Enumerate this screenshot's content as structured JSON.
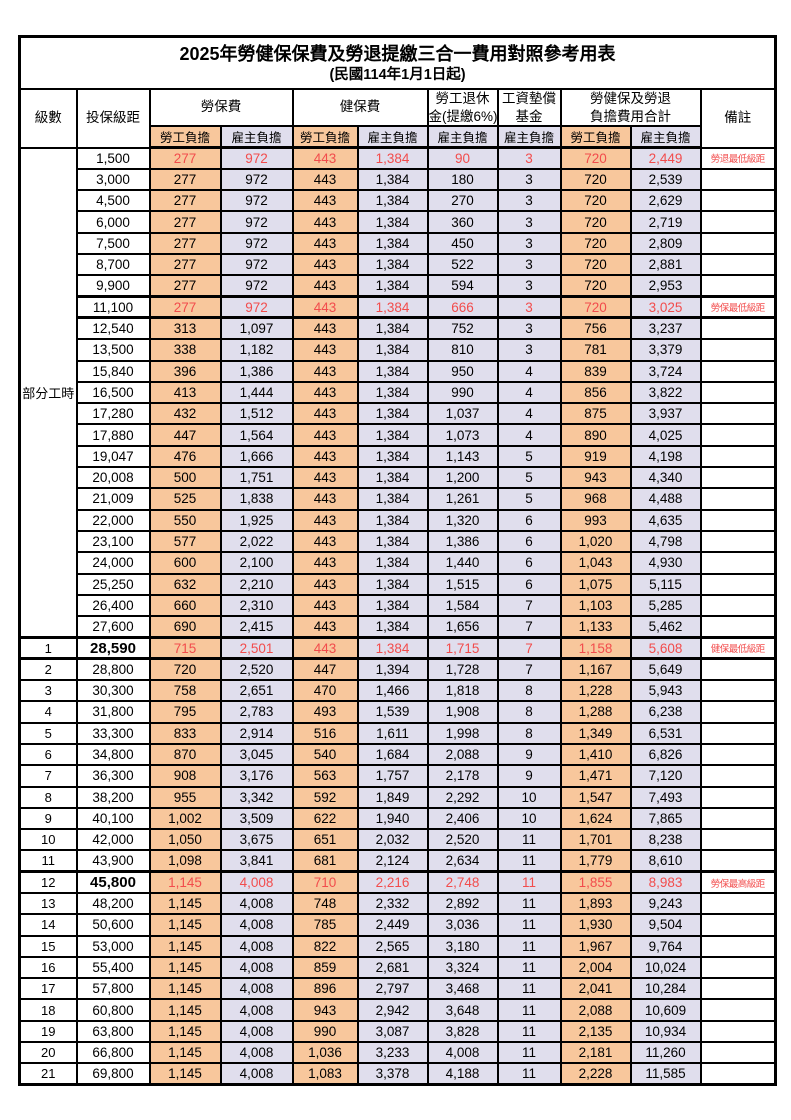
{
  "title": "2025年勞健保保費及勞退提繳三合一費用對照參考用表",
  "subtitle": "(民國114年1月1日起)",
  "header": {
    "level": "級數",
    "salary": "投保級距",
    "labor_group": "勞保費",
    "health_group": "健保費",
    "pension_line1": "勞工退休",
    "pension_line2": "金(提繳6%)",
    "fund_line1": "工資墊償",
    "fund_line2": "基金",
    "total_line1": "勞健保及勞退",
    "total_line2": "負擔費用合計",
    "remark": "備註",
    "employee": "勞工負擔",
    "employer": "雇主負擔"
  },
  "part_time_label": "部分工時",
  "colors": {
    "employee_bg": "#F8C79C",
    "employer_bg": "#E0DEED",
    "highlight_text": "#F24C4C",
    "border": "#000000"
  },
  "rows": [
    {
      "level": "",
      "salary": "1,500",
      "labor_emp": "277",
      "labor_er": "972",
      "health_emp": "443",
      "health_er": "1,384",
      "pension_er": "90",
      "fund_er": "3",
      "total_emp": "720",
      "total_er": "2,449",
      "remark": "勞退最低級距",
      "highlight": true,
      "key": false,
      "outline": ""
    },
    {
      "level": "",
      "salary": "3,000",
      "labor_emp": "277",
      "labor_er": "972",
      "health_emp": "443",
      "health_er": "1,384",
      "pension_er": "180",
      "fund_er": "3",
      "total_emp": "720",
      "total_er": "2,539",
      "remark": "",
      "highlight": false,
      "key": false,
      "outline": ""
    },
    {
      "level": "",
      "salary": "4,500",
      "labor_emp": "277",
      "labor_er": "972",
      "health_emp": "443",
      "health_er": "1,384",
      "pension_er": "270",
      "fund_er": "3",
      "total_emp": "720",
      "total_er": "2,629",
      "remark": "",
      "highlight": false,
      "key": false,
      "outline": ""
    },
    {
      "level": "",
      "salary": "6,000",
      "labor_emp": "277",
      "labor_er": "972",
      "health_emp": "443",
      "health_er": "1,384",
      "pension_er": "360",
      "fund_er": "3",
      "total_emp": "720",
      "total_er": "2,719",
      "remark": "",
      "highlight": false,
      "key": false,
      "outline": ""
    },
    {
      "level": "",
      "salary": "7,500",
      "labor_emp": "277",
      "labor_er": "972",
      "health_emp": "443",
      "health_er": "1,384",
      "pension_er": "450",
      "fund_er": "3",
      "total_emp": "720",
      "total_er": "2,809",
      "remark": "",
      "highlight": false,
      "key": false,
      "outline": ""
    },
    {
      "level": "",
      "salary": "8,700",
      "labor_emp": "277",
      "labor_er": "972",
      "health_emp": "443",
      "health_er": "1,384",
      "pension_er": "522",
      "fund_er": "3",
      "total_emp": "720",
      "total_er": "2,881",
      "remark": "",
      "highlight": false,
      "key": false,
      "outline": ""
    },
    {
      "level": "",
      "salary": "9,900",
      "labor_emp": "277",
      "labor_er": "972",
      "health_emp": "443",
      "health_er": "1,384",
      "pension_er": "594",
      "fund_er": "3",
      "total_emp": "720",
      "total_er": "2,953",
      "remark": "",
      "highlight": false,
      "key": false,
      "outline": ""
    },
    {
      "level": "",
      "salary": "11,100",
      "labor_emp": "277",
      "labor_er": "972",
      "health_emp": "443",
      "health_er": "1,384",
      "pension_er": "666",
      "fund_er": "3",
      "total_emp": "720",
      "total_er": "3,025",
      "remark": "勞保最低級距",
      "highlight": true,
      "key": false,
      "outline": "both"
    },
    {
      "level": "",
      "salary": "12,540",
      "labor_emp": "313",
      "labor_er": "1,097",
      "health_emp": "443",
      "health_er": "1,384",
      "pension_er": "752",
      "fund_er": "3",
      "total_emp": "756",
      "total_er": "3,237",
      "remark": "",
      "highlight": false,
      "key": false,
      "outline": ""
    },
    {
      "level": "",
      "salary": "13,500",
      "labor_emp": "338",
      "labor_er": "1,182",
      "health_emp": "443",
      "health_er": "1,384",
      "pension_er": "810",
      "fund_er": "3",
      "total_emp": "781",
      "total_er": "3,379",
      "remark": "",
      "highlight": false,
      "key": false,
      "outline": ""
    },
    {
      "level": "",
      "salary": "15,840",
      "labor_emp": "396",
      "labor_er": "1,386",
      "health_emp": "443",
      "health_er": "1,384",
      "pension_er": "950",
      "fund_er": "4",
      "total_emp": "839",
      "total_er": "3,724",
      "remark": "",
      "highlight": false,
      "key": false,
      "outline": ""
    },
    {
      "level": "",
      "salary": "16,500",
      "labor_emp": "413",
      "labor_er": "1,444",
      "health_emp": "443",
      "health_er": "1,384",
      "pension_er": "990",
      "fund_er": "4",
      "total_emp": "856",
      "total_er": "3,822",
      "remark": "",
      "highlight": false,
      "key": false,
      "outline": ""
    },
    {
      "level": "",
      "salary": "17,280",
      "labor_emp": "432",
      "labor_er": "1,512",
      "health_emp": "443",
      "health_er": "1,384",
      "pension_er": "1,037",
      "fund_er": "4",
      "total_emp": "875",
      "total_er": "3,937",
      "remark": "",
      "highlight": false,
      "key": false,
      "outline": ""
    },
    {
      "level": "",
      "salary": "17,880",
      "labor_emp": "447",
      "labor_er": "1,564",
      "health_emp": "443",
      "health_er": "1,384",
      "pension_er": "1,073",
      "fund_er": "4",
      "total_emp": "890",
      "total_er": "4,025",
      "remark": "",
      "highlight": false,
      "key": false,
      "outline": ""
    },
    {
      "level": "",
      "salary": "19,047",
      "labor_emp": "476",
      "labor_er": "1,666",
      "health_emp": "443",
      "health_er": "1,384",
      "pension_er": "1,143",
      "fund_er": "5",
      "total_emp": "919",
      "total_er": "4,198",
      "remark": "",
      "highlight": false,
      "key": false,
      "outline": ""
    },
    {
      "level": "",
      "salary": "20,008",
      "labor_emp": "500",
      "labor_er": "1,751",
      "health_emp": "443",
      "health_er": "1,384",
      "pension_er": "1,200",
      "fund_er": "5",
      "total_emp": "943",
      "total_er": "4,340",
      "remark": "",
      "highlight": false,
      "key": false,
      "outline": ""
    },
    {
      "level": "",
      "salary": "21,009",
      "labor_emp": "525",
      "labor_er": "1,838",
      "health_emp": "443",
      "health_er": "1,384",
      "pension_er": "1,261",
      "fund_er": "5",
      "total_emp": "968",
      "total_er": "4,488",
      "remark": "",
      "highlight": false,
      "key": false,
      "outline": ""
    },
    {
      "level": "",
      "salary": "22,000",
      "labor_emp": "550",
      "labor_er": "1,925",
      "health_emp": "443",
      "health_er": "1,384",
      "pension_er": "1,320",
      "fund_er": "6",
      "total_emp": "993",
      "total_er": "4,635",
      "remark": "",
      "highlight": false,
      "key": false,
      "outline": ""
    },
    {
      "level": "",
      "salary": "23,100",
      "labor_emp": "577",
      "labor_er": "2,022",
      "health_emp": "443",
      "health_er": "1,384",
      "pension_er": "1,386",
      "fund_er": "6",
      "total_emp": "1,020",
      "total_er": "4,798",
      "remark": "",
      "highlight": false,
      "key": false,
      "outline": ""
    },
    {
      "level": "",
      "salary": "24,000",
      "labor_emp": "600",
      "labor_er": "2,100",
      "health_emp": "443",
      "health_er": "1,384",
      "pension_er": "1,440",
      "fund_er": "6",
      "total_emp": "1,043",
      "total_er": "4,930",
      "remark": "",
      "highlight": false,
      "key": false,
      "outline": ""
    },
    {
      "level": "",
      "salary": "25,250",
      "labor_emp": "632",
      "labor_er": "2,210",
      "health_emp": "443",
      "health_er": "1,384",
      "pension_er": "1,515",
      "fund_er": "6",
      "total_emp": "1,075",
      "total_er": "5,115",
      "remark": "",
      "highlight": false,
      "key": false,
      "outline": ""
    },
    {
      "level": "",
      "salary": "26,400",
      "labor_emp": "660",
      "labor_er": "2,310",
      "health_emp": "443",
      "health_er": "1,384",
      "pension_er": "1,584",
      "fund_er": "7",
      "total_emp": "1,103",
      "total_er": "5,285",
      "remark": "",
      "highlight": false,
      "key": false,
      "outline": ""
    },
    {
      "level": "",
      "salary": "27,600",
      "labor_emp": "690",
      "labor_er": "2,415",
      "health_emp": "443",
      "health_er": "1,384",
      "pension_er": "1,656",
      "fund_er": "7",
      "total_emp": "1,133",
      "total_er": "5,462",
      "remark": "",
      "highlight": false,
      "key": false,
      "outline": ""
    },
    {
      "level": "1",
      "salary": "28,590",
      "labor_emp": "715",
      "labor_er": "2,501",
      "health_emp": "443",
      "health_er": "1,384",
      "pension_er": "1,715",
      "fund_er": "7",
      "total_emp": "1,158",
      "total_er": "5,608",
      "remark": "健保最低級距",
      "highlight": true,
      "key": true,
      "outline": "both"
    },
    {
      "level": "2",
      "salary": "28,800",
      "labor_emp": "720",
      "labor_er": "2,520",
      "health_emp": "447",
      "health_er": "1,394",
      "pension_er": "1,728",
      "fund_er": "7",
      "total_emp": "1,167",
      "total_er": "5,649",
      "remark": "",
      "highlight": false,
      "key": false,
      "outline": ""
    },
    {
      "level": "3",
      "salary": "30,300",
      "labor_emp": "758",
      "labor_er": "2,651",
      "health_emp": "470",
      "health_er": "1,466",
      "pension_er": "1,818",
      "fund_er": "8",
      "total_emp": "1,228",
      "total_er": "5,943",
      "remark": "",
      "highlight": false,
      "key": false,
      "outline": ""
    },
    {
      "level": "4",
      "salary": "31,800",
      "labor_emp": "795",
      "labor_er": "2,783",
      "health_emp": "493",
      "health_er": "1,539",
      "pension_er": "1,908",
      "fund_er": "8",
      "total_emp": "1,288",
      "total_er": "6,238",
      "remark": "",
      "highlight": false,
      "key": false,
      "outline": ""
    },
    {
      "level": "5",
      "salary": "33,300",
      "labor_emp": "833",
      "labor_er": "2,914",
      "health_emp": "516",
      "health_er": "1,611",
      "pension_er": "1,998",
      "fund_er": "8",
      "total_emp": "1,349",
      "total_er": "6,531",
      "remark": "",
      "highlight": false,
      "key": false,
      "outline": ""
    },
    {
      "level": "6",
      "salary": "34,800",
      "labor_emp": "870",
      "labor_er": "3,045",
      "health_emp": "540",
      "health_er": "1,684",
      "pension_er": "2,088",
      "fund_er": "9",
      "total_emp": "1,410",
      "total_er": "6,826",
      "remark": "",
      "highlight": false,
      "key": false,
      "outline": ""
    },
    {
      "level": "7",
      "salary": "36,300",
      "labor_emp": "908",
      "labor_er": "3,176",
      "health_emp": "563",
      "health_er": "1,757",
      "pension_er": "2,178",
      "fund_er": "9",
      "total_emp": "1,471",
      "total_er": "7,120",
      "remark": "",
      "highlight": false,
      "key": false,
      "outline": ""
    },
    {
      "level": "8",
      "salary": "38,200",
      "labor_emp": "955",
      "labor_er": "3,342",
      "health_emp": "592",
      "health_er": "1,849",
      "pension_er": "2,292",
      "fund_er": "10",
      "total_emp": "1,547",
      "total_er": "7,493",
      "remark": "",
      "highlight": false,
      "key": false,
      "outline": ""
    },
    {
      "level": "9",
      "salary": "40,100",
      "labor_emp": "1,002",
      "labor_er": "3,509",
      "health_emp": "622",
      "health_er": "1,940",
      "pension_er": "2,406",
      "fund_er": "10",
      "total_emp": "1,624",
      "total_er": "7,865",
      "remark": "",
      "highlight": false,
      "key": false,
      "outline": ""
    },
    {
      "level": "10",
      "salary": "42,000",
      "labor_emp": "1,050",
      "labor_er": "3,675",
      "health_emp": "651",
      "health_er": "2,032",
      "pension_er": "2,520",
      "fund_er": "11",
      "total_emp": "1,701",
      "total_er": "8,238",
      "remark": "",
      "highlight": false,
      "key": false,
      "outline": ""
    },
    {
      "level": "11",
      "salary": "43,900",
      "labor_emp": "1,098",
      "labor_er": "3,841",
      "health_emp": "681",
      "health_er": "2,124",
      "pension_er": "2,634",
      "fund_er": "11",
      "total_emp": "1,779",
      "total_er": "8,610",
      "remark": "",
      "highlight": false,
      "key": false,
      "outline": ""
    },
    {
      "level": "12",
      "salary": "45,800",
      "labor_emp": "1,145",
      "labor_er": "4,008",
      "health_emp": "710",
      "health_er": "2,216",
      "pension_er": "2,748",
      "fund_er": "11",
      "total_emp": "1,855",
      "total_er": "8,983",
      "remark": "勞保最高級距",
      "highlight": true,
      "key": true,
      "outline": "top"
    },
    {
      "level": "13",
      "salary": "48,200",
      "labor_emp": "1,145",
      "labor_er": "4,008",
      "health_emp": "748",
      "health_er": "2,332",
      "pension_er": "2,892",
      "fund_er": "11",
      "total_emp": "1,893",
      "total_er": "9,243",
      "remark": "",
      "highlight": false,
      "key": false,
      "outline": ""
    },
    {
      "level": "14",
      "salary": "50,600",
      "labor_emp": "1,145",
      "labor_er": "4,008",
      "health_emp": "785",
      "health_er": "2,449",
      "pension_er": "3,036",
      "fund_er": "11",
      "total_emp": "1,930",
      "total_er": "9,504",
      "remark": "",
      "highlight": false,
      "key": false,
      "outline": ""
    },
    {
      "level": "15",
      "salary": "53,000",
      "labor_emp": "1,145",
      "labor_er": "4,008",
      "health_emp": "822",
      "health_er": "2,565",
      "pension_er": "3,180",
      "fund_er": "11",
      "total_emp": "1,967",
      "total_er": "9,764",
      "remark": "",
      "highlight": false,
      "key": false,
      "outline": ""
    },
    {
      "level": "16",
      "salary": "55,400",
      "labor_emp": "1,145",
      "labor_er": "4,008",
      "health_emp": "859",
      "health_er": "2,681",
      "pension_er": "3,324",
      "fund_er": "11",
      "total_emp": "2,004",
      "total_er": "10,024",
      "remark": "",
      "highlight": false,
      "key": false,
      "outline": ""
    },
    {
      "level": "17",
      "salary": "57,800",
      "labor_emp": "1,145",
      "labor_er": "4,008",
      "health_emp": "896",
      "health_er": "2,797",
      "pension_er": "3,468",
      "fund_er": "11",
      "total_emp": "2,041",
      "total_er": "10,284",
      "remark": "",
      "highlight": false,
      "key": false,
      "outline": ""
    },
    {
      "level": "18",
      "salary": "60,800",
      "labor_emp": "1,145",
      "labor_er": "4,008",
      "health_emp": "943",
      "health_er": "2,942",
      "pension_er": "3,648",
      "fund_er": "11",
      "total_emp": "2,088",
      "total_er": "10,609",
      "remark": "",
      "highlight": false,
      "key": false,
      "outline": ""
    },
    {
      "level": "19",
      "salary": "63,800",
      "labor_emp": "1,145",
      "labor_er": "4,008",
      "health_emp": "990",
      "health_er": "3,087",
      "pension_er": "3,828",
      "fund_er": "11",
      "total_emp": "2,135",
      "total_er": "10,934",
      "remark": "",
      "highlight": false,
      "key": false,
      "outline": ""
    },
    {
      "level": "20",
      "salary": "66,800",
      "labor_emp": "1,145",
      "labor_er": "4,008",
      "health_emp": "1,036",
      "health_er": "3,233",
      "pension_er": "4,008",
      "fund_er": "11",
      "total_emp": "2,181",
      "total_er": "11,260",
      "remark": "",
      "highlight": false,
      "key": false,
      "outline": ""
    },
    {
      "level": "21",
      "salary": "69,800",
      "labor_emp": "1,145",
      "labor_er": "4,008",
      "health_emp": "1,083",
      "health_er": "3,378",
      "pension_er": "4,188",
      "fund_er": "11",
      "total_emp": "2,228",
      "total_er": "11,585",
      "remark": "",
      "highlight": false,
      "key": false,
      "outline": ""
    }
  ]
}
